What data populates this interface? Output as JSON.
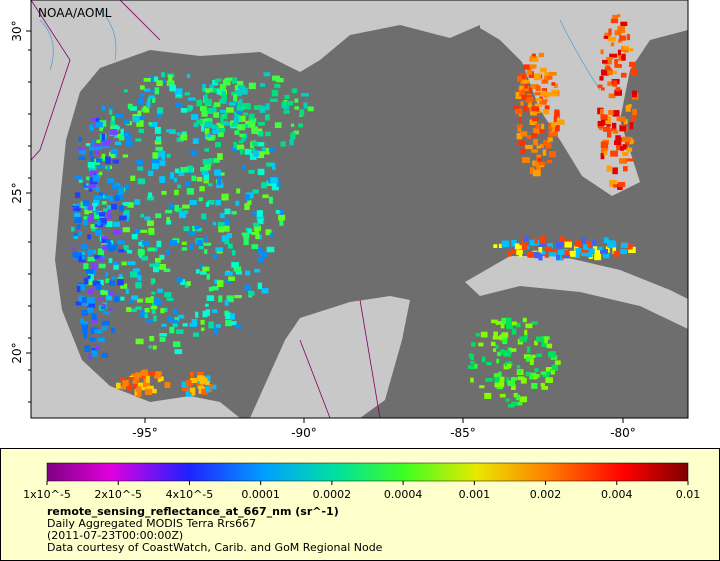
{
  "map": {
    "credit": "NOAA/AOML",
    "x_ticks": [
      "-95°",
      "-90°",
      "-85°",
      "-80°"
    ],
    "y_ticks": [
      "30°",
      "25°",
      "20°"
    ]
  },
  "legend": {
    "scale_labels": [
      "1x10^-5",
      "2x10^-5",
      "4x10^-5",
      "0.0001",
      "0.0002",
      "0.0004",
      "0.001",
      "0.002",
      "0.004",
      "0.01"
    ],
    "title": "remote_sensing_reflectance_at_667_nm (sr^-1)",
    "lines": [
      "Daily Aggregated MODIS Terra Rrs667",
      "(2011-07-23T00:00:00Z)",
      "Data courtesy of CoastWatch, Carib. and GoM Regional Node"
    ]
  }
}
